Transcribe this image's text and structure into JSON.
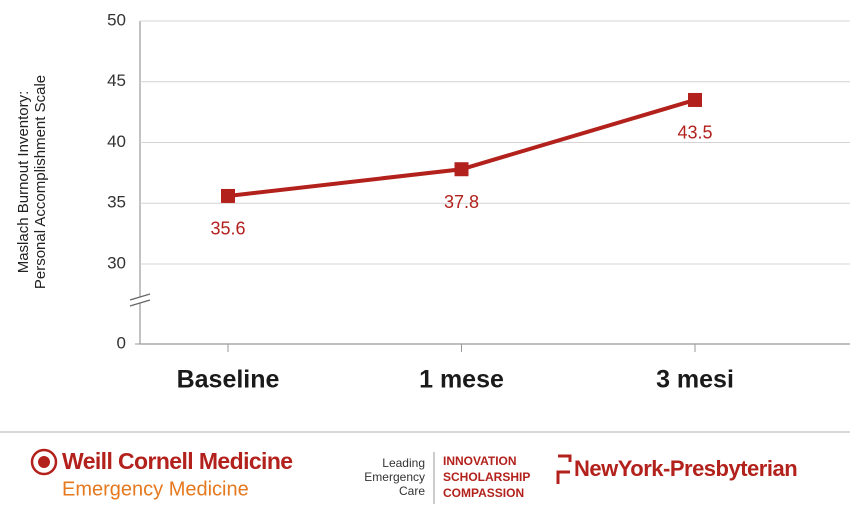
{
  "chart_data": {
    "type": "line",
    "ylabel": [
      "Maslach Burnout Inventory:",
      "Personal Accomplishment Scale"
    ],
    "categories": [
      "Baseline",
      "1 mese",
      "3 mesi"
    ],
    "values": [
      35.6,
      37.8,
      43.5
    ],
    "color": "#b3211c",
    "ylim": [
      0,
      50
    ],
    "yticks": [
      0,
      30,
      35,
      40,
      45,
      50
    ],
    "axis_break": [
      0,
      30
    ],
    "grid": true
  },
  "footer": {
    "weill": {
      "title": "Weill Cornell Medicine",
      "subtitle": "Emergency Medicine"
    },
    "tagline": [
      "Leading",
      "Emergency",
      "Care"
    ],
    "values": [
      "INNOVATION",
      "SCHOLARSHIP",
      "COMPASSION"
    ],
    "nyp": "NewYork-Presbyterian"
  }
}
